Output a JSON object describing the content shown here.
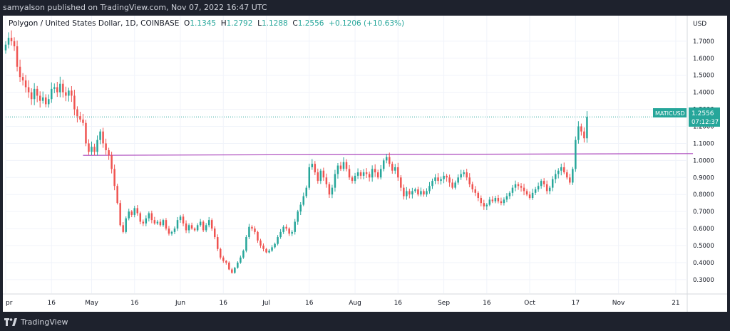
{
  "header": {
    "publisher_text": "samyalson published on TradingView.com, Nov 07, 2022 16:47 UTC"
  },
  "legend": {
    "symbol": "Polygon / United States Dollar, 1D, COINBASE",
    "open_label": "O",
    "open": "1.1345",
    "high_label": "H",
    "high": "1.2792",
    "low_label": "L",
    "low": "1.1288",
    "close_label": "C",
    "close": "1.2556",
    "change": "+0.1206 (+10.63%)"
  },
  "price_axis": {
    "currency": "USD"
  },
  "price_tag": {
    "ticker": "MATICUSD",
    "price": "1.2556",
    "countdown": "07:12:37"
  },
  "footer": {
    "brand": "TradingView"
  },
  "colors": {
    "up": "#26a69a",
    "down": "#ef5350",
    "line": "#ab47bc",
    "price_tag": "#26a69a"
  },
  "chart_data": {
    "type": "candlestick",
    "title": "Polygon / United States Dollar, 1D, COINBASE",
    "ylabel": "USD",
    "ylim": [
      0.22,
      1.85
    ],
    "y_ticks": [
      "0.3000",
      "0.4000",
      "0.5000",
      "0.6000",
      "0.7000",
      "0.8000",
      "0.9000",
      "1.0000",
      "1.1000",
      "1.2000",
      "1.3000",
      "1.4000",
      "1.5000",
      "1.6000",
      "1.7000"
    ],
    "x_ticks": [
      {
        "label": "pr",
        "day": 0
      },
      {
        "label": "16",
        "day": 16
      },
      {
        "label": "May",
        "day": 30
      },
      {
        "label": "16",
        "day": 45
      },
      {
        "label": "Jun",
        "day": 61
      },
      {
        "label": "16",
        "day": 76
      },
      {
        "label": "Jul",
        "day": 91
      },
      {
        "label": "16",
        "day": 106
      },
      {
        "label": "Aug",
        "day": 122
      },
      {
        "label": "16",
        "day": 137
      },
      {
        "label": "Sep",
        "day": 153
      },
      {
        "label": "16",
        "day": 168
      },
      {
        "label": "Oct",
        "day": 183
      },
      {
        "label": "17",
        "day": 199
      },
      {
        "label": "Nov",
        "day": 214
      },
      {
        "label": "21",
        "day": 234
      }
    ],
    "x_range": [
      0,
      238
    ],
    "horizontal_line": {
      "from_day": 27,
      "to_day": 240,
      "start_value": 1.03,
      "end_value": 1.04
    },
    "last_price_line": 1.2556,
    "anchors": [
      [
        0,
        1.68
      ],
      [
        1,
        1.72
      ],
      [
        2,
        1.7
      ],
      [
        3,
        1.67
      ],
      [
        4,
        1.55
      ],
      [
        5,
        1.49
      ],
      [
        6,
        1.47
      ],
      [
        7,
        1.43
      ],
      [
        8,
        1.4
      ],
      [
        9,
        1.36
      ],
      [
        10,
        1.42
      ],
      [
        11,
        1.38
      ],
      [
        12,
        1.35
      ],
      [
        13,
        1.37
      ],
      [
        14,
        1.33
      ],
      [
        15,
        1.36
      ],
      [
        16,
        1.42
      ],
      [
        17,
        1.43
      ],
      [
        18,
        1.4
      ],
      [
        19,
        1.45
      ],
      [
        20,
        1.4
      ],
      [
        21,
        1.38
      ],
      [
        22,
        1.41
      ],
      [
        23,
        1.38
      ],
      [
        24,
        1.3
      ],
      [
        25,
        1.26
      ],
      [
        26,
        1.24
      ],
      [
        27,
        1.22
      ],
      [
        28,
        1.1
      ],
      [
        29,
        1.05
      ],
      [
        30,
        1.08
      ],
      [
        31,
        1.05
      ],
      [
        32,
        1.12
      ],
      [
        33,
        1.17
      ],
      [
        34,
        1.1
      ],
      [
        35,
        1.06
      ],
      [
        36,
        1.03
      ],
      [
        37,
        0.95
      ],
      [
        38,
        0.85
      ],
      [
        39,
        0.75
      ],
      [
        40,
        0.62
      ],
      [
        41,
        0.58
      ],
      [
        42,
        0.66
      ],
      [
        43,
        0.7
      ],
      [
        44,
        0.68
      ],
      [
        45,
        0.72
      ],
      [
        46,
        0.69
      ],
      [
        47,
        0.64
      ],
      [
        48,
        0.63
      ],
      [
        49,
        0.66
      ],
      [
        50,
        0.69
      ],
      [
        51,
        0.65
      ],
      [
        52,
        0.63
      ],
      [
        53,
        0.64
      ],
      [
        54,
        0.62
      ],
      [
        55,
        0.65
      ],
      [
        56,
        0.6
      ],
      [
        57,
        0.57
      ],
      [
        58,
        0.58
      ],
      [
        59,
        0.6
      ],
      [
        60,
        0.65
      ],
      [
        61,
        0.67
      ],
      [
        62,
        0.63
      ],
      [
        63,
        0.59
      ],
      [
        64,
        0.62
      ],
      [
        65,
        0.6
      ],
      [
        66,
        0.59
      ],
      [
        67,
        0.62
      ],
      [
        68,
        0.64
      ],
      [
        69,
        0.59
      ],
      [
        70,
        0.62
      ],
      [
        71,
        0.65
      ],
      [
        72,
        0.6
      ],
      [
        73,
        0.55
      ],
      [
        74,
        0.48
      ],
      [
        75,
        0.43
      ],
      [
        76,
        0.41
      ],
      [
        77,
        0.4
      ],
      [
        78,
        0.36
      ],
      [
        79,
        0.34
      ],
      [
        80,
        0.37
      ],
      [
        81,
        0.4
      ],
      [
        82,
        0.43
      ],
      [
        83,
        0.47
      ],
      [
        84,
        0.55
      ],
      [
        85,
        0.61
      ],
      [
        86,
        0.6
      ],
      [
        87,
        0.58
      ],
      [
        88,
        0.53
      ],
      [
        89,
        0.5
      ],
      [
        90,
        0.48
      ],
      [
        91,
        0.46
      ],
      [
        92,
        0.47
      ],
      [
        93,
        0.49
      ],
      [
        94,
        0.51
      ],
      [
        95,
        0.55
      ],
      [
        96,
        0.58
      ],
      [
        97,
        0.61
      ],
      [
        98,
        0.6
      ],
      [
        99,
        0.57
      ],
      [
        100,
        0.58
      ],
      [
        101,
        0.64
      ],
      [
        102,
        0.7
      ],
      [
        103,
        0.74
      ],
      [
        104,
        0.79
      ],
      [
        105,
        0.84
      ],
      [
        106,
        0.96
      ],
      [
        107,
        0.98
      ],
      [
        108,
        0.93
      ],
      [
        109,
        0.88
      ],
      [
        110,
        0.94
      ],
      [
        111,
        0.9
      ],
      [
        112,
        0.86
      ],
      [
        113,
        0.8
      ],
      [
        114,
        0.84
      ],
      [
        115,
        0.92
      ],
      [
        116,
        0.97
      ],
      [
        117,
        0.95
      ],
      [
        118,
        0.99
      ],
      [
        119,
        0.95
      ],
      [
        120,
        0.9
      ],
      [
        121,
        0.88
      ],
      [
        122,
        0.91
      ],
      [
        123,
        0.93
      ],
      [
        124,
        0.91
      ],
      [
        125,
        0.93
      ],
      [
        126,
        0.92
      ],
      [
        127,
        0.9
      ],
      [
        128,
        0.95
      ],
      [
        129,
        0.93
      ],
      [
        130,
        0.9
      ],
      [
        131,
        0.95
      ],
      [
        132,
        1.0
      ],
      [
        133,
        1.02
      ],
      [
        134,
        0.98
      ],
      [
        135,
        0.94
      ],
      [
        136,
        0.96
      ],
      [
        137,
        0.9
      ],
      [
        138,
        0.84
      ],
      [
        139,
        0.79
      ],
      [
        140,
        0.82
      ],
      [
        141,
        0.8
      ],
      [
        142,
        0.82
      ],
      [
        143,
        0.83
      ],
      [
        144,
        0.8
      ],
      [
        145,
        0.82
      ],
      [
        146,
        0.8
      ],
      [
        147,
        0.82
      ],
      [
        148,
        0.85
      ],
      [
        149,
        0.88
      ],
      [
        150,
        0.9
      ],
      [
        151,
        0.88
      ],
      [
        152,
        0.89
      ],
      [
        153,
        0.91
      ],
      [
        154,
        0.9
      ],
      [
        155,
        0.87
      ],
      [
        156,
        0.84
      ],
      [
        157,
        0.87
      ],
      [
        158,
        0.9
      ],
      [
        159,
        0.92
      ],
      [
        160,
        0.93
      ],
      [
        161,
        0.9
      ],
      [
        162,
        0.86
      ],
      [
        163,
        0.83
      ],
      [
        164,
        0.81
      ],
      [
        165,
        0.78
      ],
      [
        166,
        0.75
      ],
      [
        167,
        0.73
      ],
      [
        168,
        0.74
      ],
      [
        169,
        0.77
      ],
      [
        170,
        0.76
      ],
      [
        171,
        0.78
      ],
      [
        172,
        0.76
      ],
      [
        173,
        0.75
      ],
      [
        174,
        0.77
      ],
      [
        175,
        0.79
      ],
      [
        176,
        0.81
      ],
      [
        177,
        0.84
      ],
      [
        178,
        0.86
      ],
      [
        179,
        0.85
      ],
      [
        180,
        0.84
      ],
      [
        181,
        0.82
      ],
      [
        182,
        0.8
      ],
      [
        183,
        0.78
      ],
      [
        184,
        0.81
      ],
      [
        185,
        0.83
      ],
      [
        186,
        0.85
      ],
      [
        187,
        0.88
      ],
      [
        188,
        0.86
      ],
      [
        189,
        0.82
      ],
      [
        190,
        0.84
      ],
      [
        191,
        0.89
      ],
      [
        192,
        0.92
      ],
      [
        193,
        0.94
      ],
      [
        194,
        0.96
      ],
      [
        195,
        0.93
      ],
      [
        196,
        0.9
      ],
      [
        197,
        0.87
      ],
      [
        198,
        0.95
      ],
      [
        199,
        1.12
      ],
      [
        200,
        1.2
      ],
      [
        201,
        1.17
      ],
      [
        202,
        1.13
      ],
      [
        203,
        1.2556
      ]
    ]
  }
}
